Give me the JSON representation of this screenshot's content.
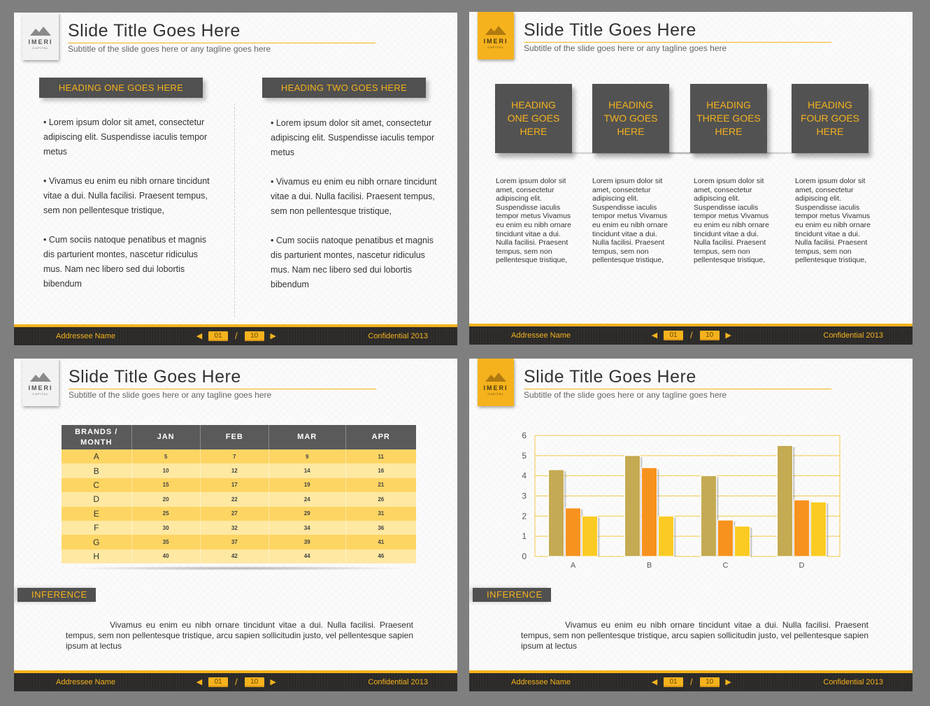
{
  "slide_title": "Slide Title Goes Here",
  "slide_subtitle": "Subtitle of the slide goes here or any tagline goes here",
  "logo": {
    "name": "IMERI",
    "sub": "CAPITAL"
  },
  "footer": {
    "addressee": "Addressee Name",
    "current_page": "01",
    "separator": "/",
    "total_pages": "10",
    "confidential": "Confidential 2013",
    "prev_icon": "triangle-left-icon",
    "next_icon": "triangle-right-icon"
  },
  "colors": {
    "accent": "#f5b21d",
    "dark": "#505050",
    "footer": "#2b2a28"
  },
  "slide1": {
    "heading1": "HEADING ONE GOES HERE",
    "heading2": "HEADING TWO GOES HERE",
    "bullets": [
      "• Lorem ipsum dolor sit amet, consectetur adipiscing elit. Suspendisse iaculis tempor metus",
      "• Vivamus eu enim eu nibh ornare tincidunt vitae a dui. Nulla facilisi. Praesent tempus, sem non pellentesque tristique,",
      "• Cum sociis natoque penatibus et magnis dis parturient montes, nascetur ridiculus mus. Nam nec libero sed dui lobortis bibendum"
    ]
  },
  "slide2": {
    "headings": [
      "HEADING ONE GOES HERE",
      "HEADING TWO GOES HERE",
      "HEADING THREE GOES HERE",
      "HEADING FOUR GOES HERE"
    ],
    "body": "Lorem ipsum dolor sit amet, consectetur adipiscing elit. Suspendisse iaculis tempor metus Vivamus eu enim eu nibh ornare tincidunt vitae a dui. Nulla facilisi. Praesent tempus, sem non pellentesque tristique,"
  },
  "slide3": {
    "table": {
      "header": [
        "BRANDS / MONTH",
        "JAN",
        "FEB",
        "MAR",
        "APR"
      ],
      "rows": [
        [
          "A",
          "5",
          "7",
          "9",
          "11"
        ],
        [
          "B",
          "10",
          "12",
          "14",
          "16"
        ],
        [
          "C",
          "15",
          "17",
          "19",
          "21"
        ],
        [
          "D",
          "20",
          "22",
          "24",
          "26"
        ],
        [
          "E",
          "25",
          "27",
          "29",
          "31"
        ],
        [
          "F",
          "30",
          "32",
          "34",
          "36"
        ],
        [
          "G",
          "35",
          "37",
          "39",
          "41"
        ],
        [
          "H",
          "40",
          "42",
          "44",
          "46"
        ]
      ]
    }
  },
  "inference": {
    "label": "INFERENCE",
    "text": "Vivamus eu enim eu nibh ornare tincidunt vitae a dui. Nulla facilisi. Praesent tempus, sem non pellentesque tristique, arcu sapien sollicitudin justo, vel pellentesque sapien ipsum at lectus"
  },
  "chart_data": {
    "type": "bar",
    "categories": [
      "A",
      "B",
      "C",
      "D"
    ],
    "series": [
      {
        "values": [
          4.3,
          5.0,
          4.0,
          5.5
        ],
        "color": "#c4aa52"
      },
      {
        "values": [
          2.4,
          4.4,
          1.8,
          2.8
        ],
        "color": "#f7921e"
      },
      {
        "values": [
          2.0,
          2.0,
          1.5,
          2.7
        ],
        "color": "#fbcb23"
      }
    ],
    "ylim": [
      0,
      6
    ],
    "yticks": [
      "0",
      "1",
      "2",
      "3",
      "4",
      "5",
      "6"
    ],
    "grid": true
  }
}
